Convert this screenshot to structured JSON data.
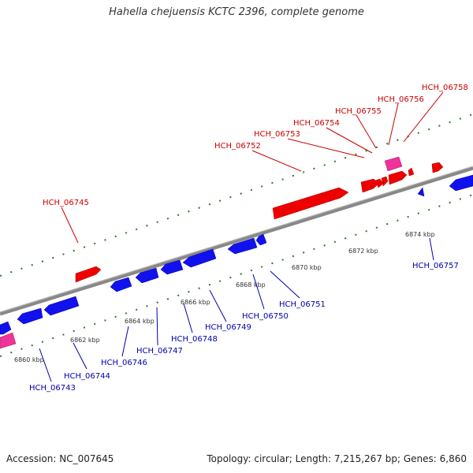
{
  "title": "Hahella chejuensis KCTC 2396, complete genome",
  "footer": {
    "accession": "Accession: NC_007645",
    "summary": "Topology: circular; Length: 7,215,267 bp; Genes: 6,860"
  },
  "colors": {
    "forward_gene": "#ff0000",
    "reverse_gene": "#0000ff",
    "rna_gene": "#ff33aa",
    "tick": "#2a7a2a",
    "backbone": "#888888",
    "forward_label": "#cc0000",
    "reverse_label": "#0000aa"
  },
  "scale_labels": [
    "6860 kbp",
    "6862 kbp",
    "6864 kbp",
    "6866 kbp",
    "6868 kbp",
    "6870 kbp",
    "6872 kbp",
    "6874 kbp"
  ],
  "forward_labels": [
    "HCH_06745",
    "HCH_06752",
    "HCH_06753",
    "HCH_06754",
    "HCH_06755",
    "HCH_06756",
    "HCH_06758"
  ],
  "reverse_labels": [
    "HCH_06743",
    "HCH_06744",
    "HCH_06746",
    "HCH_06747",
    "HCH_06748",
    "HCH_06749",
    "HCH_06750",
    "HCH_06751",
    "HCH_06757"
  ]
}
